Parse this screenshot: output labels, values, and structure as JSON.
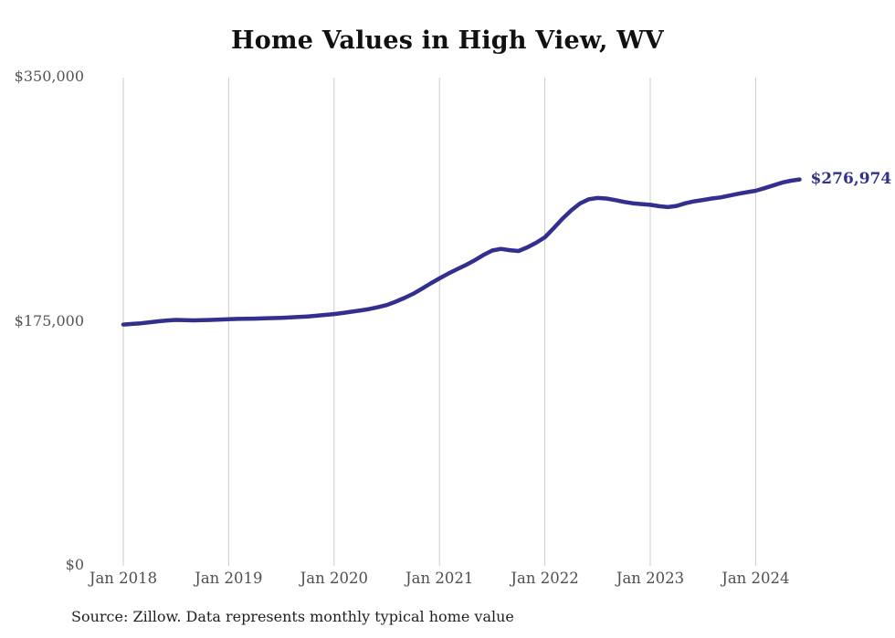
{
  "title": "Home Values in High View, WV",
  "source_note": "Source: Zillow. Data represents monthly typical home value",
  "end_label": {
    "text": "$276,974"
  },
  "colors": {
    "line": "#332f8e",
    "gridline": "#cccccc",
    "tick_text": "#4f4f4f",
    "title_text": "#111111"
  },
  "y_axis": {
    "ticks": [
      {
        "label": "$0",
        "value": 0
      },
      {
        "label": "$175,000",
        "value": 175000
      },
      {
        "label": "$350,000",
        "value": 350000
      }
    ]
  },
  "x_axis": {
    "ticks": [
      "Jan 2018",
      "Jan 2019",
      "Jan 2020",
      "Jan 2021",
      "Jan 2022",
      "Jan 2023",
      "Jan 2024"
    ]
  },
  "chart_data": {
    "type": "line",
    "title": "Home Values in High View, WV",
    "xlabel": "",
    "ylabel": "",
    "ylim": [
      0,
      350000
    ],
    "grid": "vertical-year-lines-only",
    "legend": "none",
    "end_annotation": "$276,974",
    "x": [
      "2018-01",
      "2018-02",
      "2018-03",
      "2018-04",
      "2018-05",
      "2018-06",
      "2018-07",
      "2018-08",
      "2018-09",
      "2018-10",
      "2018-11",
      "2018-12",
      "2019-01",
      "2019-02",
      "2019-03",
      "2019-04",
      "2019-05",
      "2019-06",
      "2019-07",
      "2019-08",
      "2019-09",
      "2019-10",
      "2019-11",
      "2019-12",
      "2020-01",
      "2020-02",
      "2020-03",
      "2020-04",
      "2020-05",
      "2020-06",
      "2020-07",
      "2020-08",
      "2020-09",
      "2020-10",
      "2020-11",
      "2020-12",
      "2021-01",
      "2021-02",
      "2021-03",
      "2021-04",
      "2021-05",
      "2021-06",
      "2021-07",
      "2021-08",
      "2021-09",
      "2021-10",
      "2021-11",
      "2021-12",
      "2022-01",
      "2022-02",
      "2022-03",
      "2022-04",
      "2022-05",
      "2022-06",
      "2022-07",
      "2022-08",
      "2022-09",
      "2022-10",
      "2022-11",
      "2022-12",
      "2023-01",
      "2023-02",
      "2023-03",
      "2023-04",
      "2023-05",
      "2023-06",
      "2023-07",
      "2023-08",
      "2023-09",
      "2023-10",
      "2023-11",
      "2023-12",
      "2024-01",
      "2024-02",
      "2024-03",
      "2024-04",
      "2024-05",
      "2024-06"
    ],
    "values": [
      173000,
      173400,
      173900,
      174600,
      175300,
      175900,
      176300,
      176200,
      176000,
      176100,
      176300,
      176600,
      176800,
      177000,
      177100,
      177200,
      177400,
      177600,
      177800,
      178100,
      178400,
      178800,
      179300,
      179900,
      180500,
      181300,
      182200,
      183100,
      184100,
      185400,
      187000,
      189300,
      192000,
      195000,
      198700,
      202500,
      206100,
      209500,
      212600,
      215600,
      219000,
      222800,
      226000,
      227200,
      226300,
      225700,
      228300,
      231600,
      235500,
      242000,
      248800,
      254800,
      259800,
      262800,
      263700,
      263300,
      262200,
      260900,
      259900,
      259300,
      258800,
      257800,
      257200,
      258000,
      259900,
      261300,
      262300,
      263300,
      264100,
      265400,
      266700,
      267800,
      268900,
      270700,
      272700,
      274700,
      276100,
      276974
    ]
  }
}
